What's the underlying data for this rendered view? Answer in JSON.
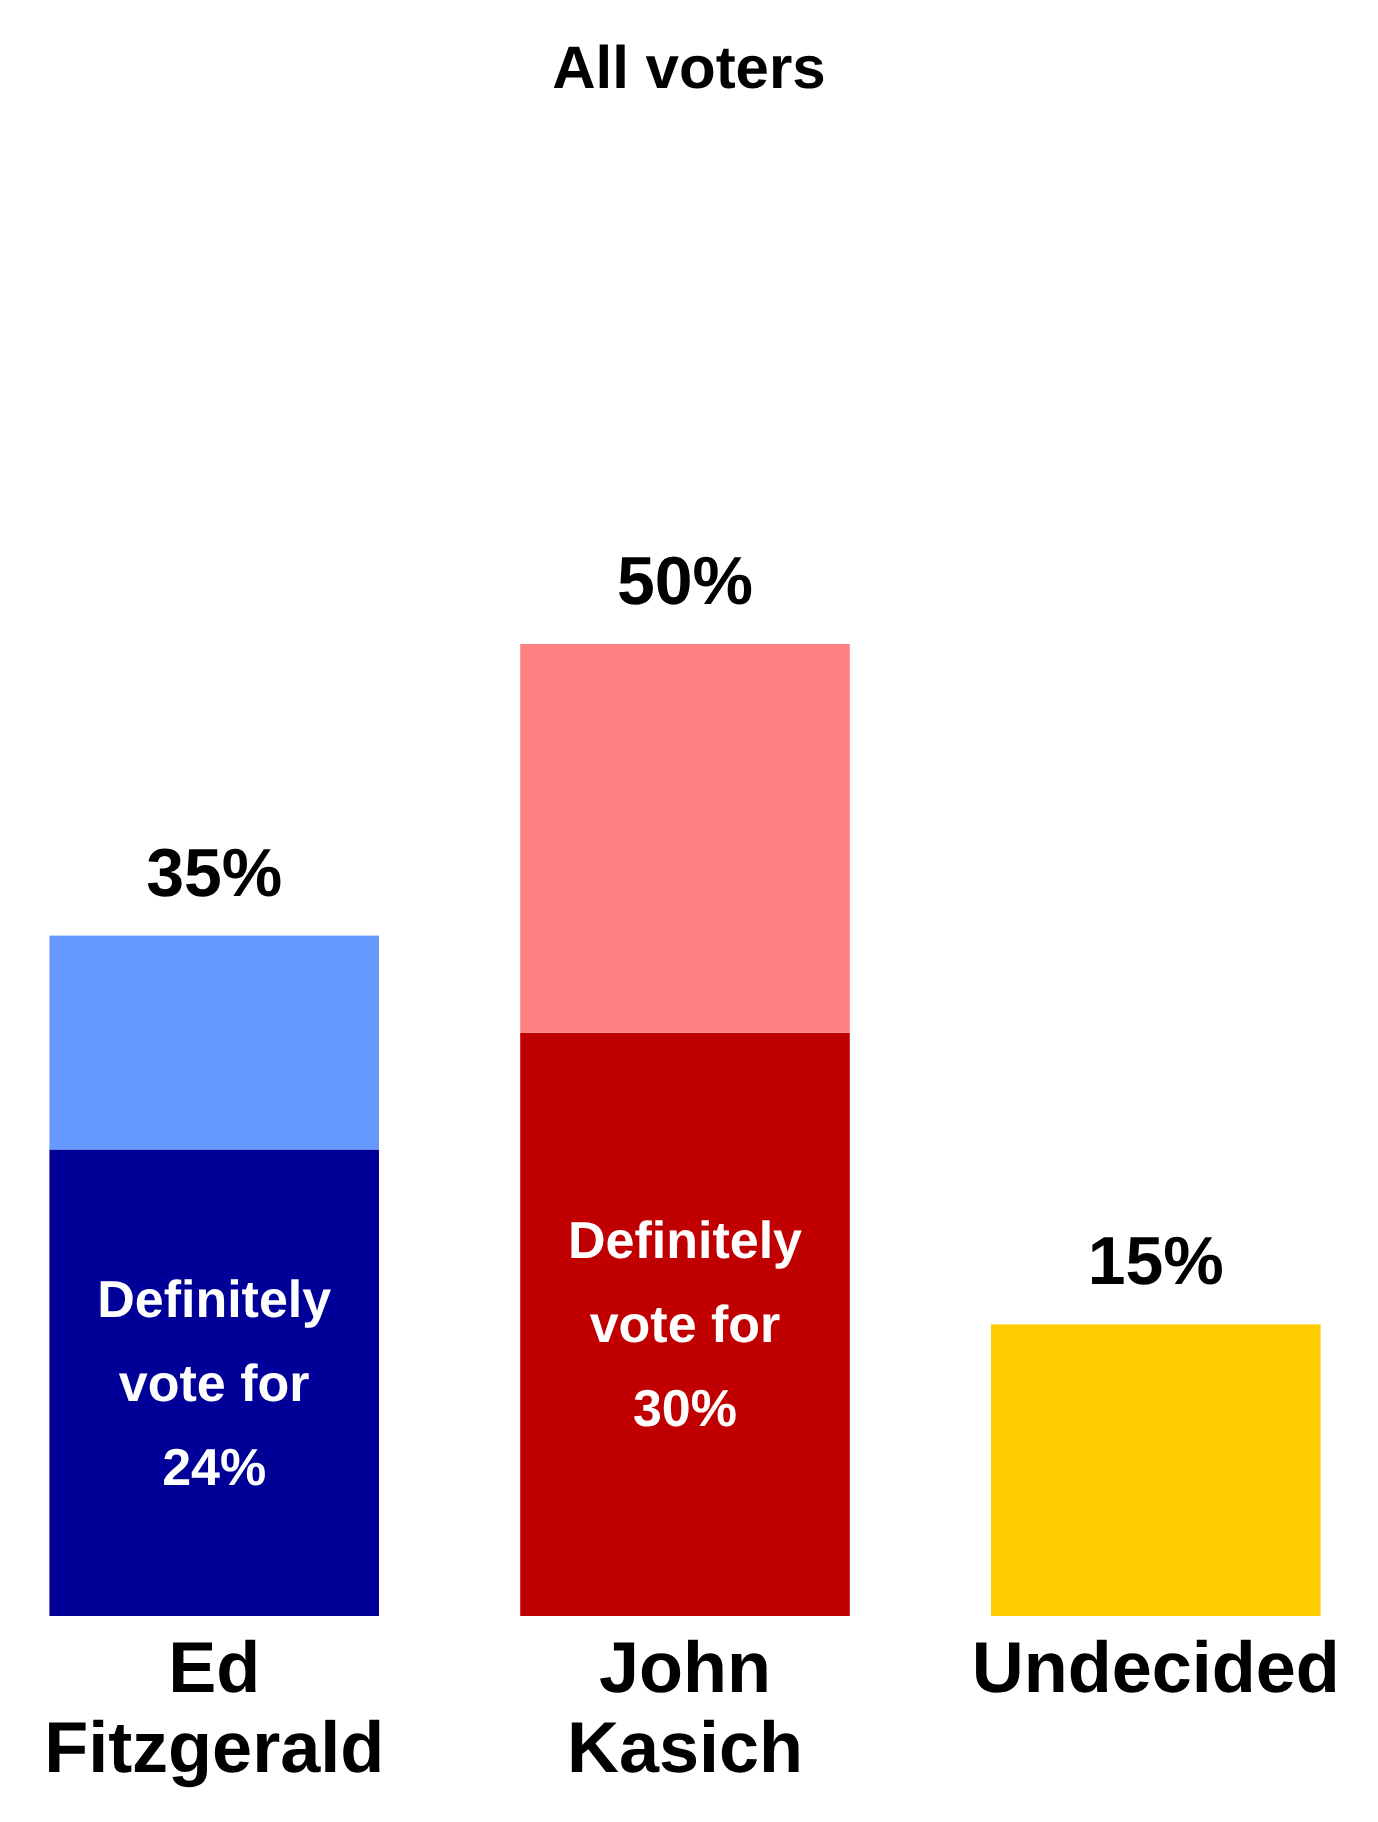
{
  "chart_data": {
    "type": "bar",
    "title": "All voters",
    "stacked": true,
    "legend": false,
    "categories": [
      "Ed Fitzgerald",
      "John Kasich",
      "Undecided"
    ],
    "series": [
      {
        "name": "Definitely vote for",
        "colors": [
          "#000099",
          "#c00000",
          "#ffcc00"
        ],
        "values": [
          24,
          30,
          15
        ],
        "value_labels": [
          "24%",
          "30%",
          null
        ]
      },
      {
        "colors": [
          "#6699ff",
          "#ff8080",
          null
        ],
        "values": [
          11,
          20,
          null
        ]
      }
    ],
    "totals": [
      "35%",
      "50%",
      "15%"
    ]
  }
}
